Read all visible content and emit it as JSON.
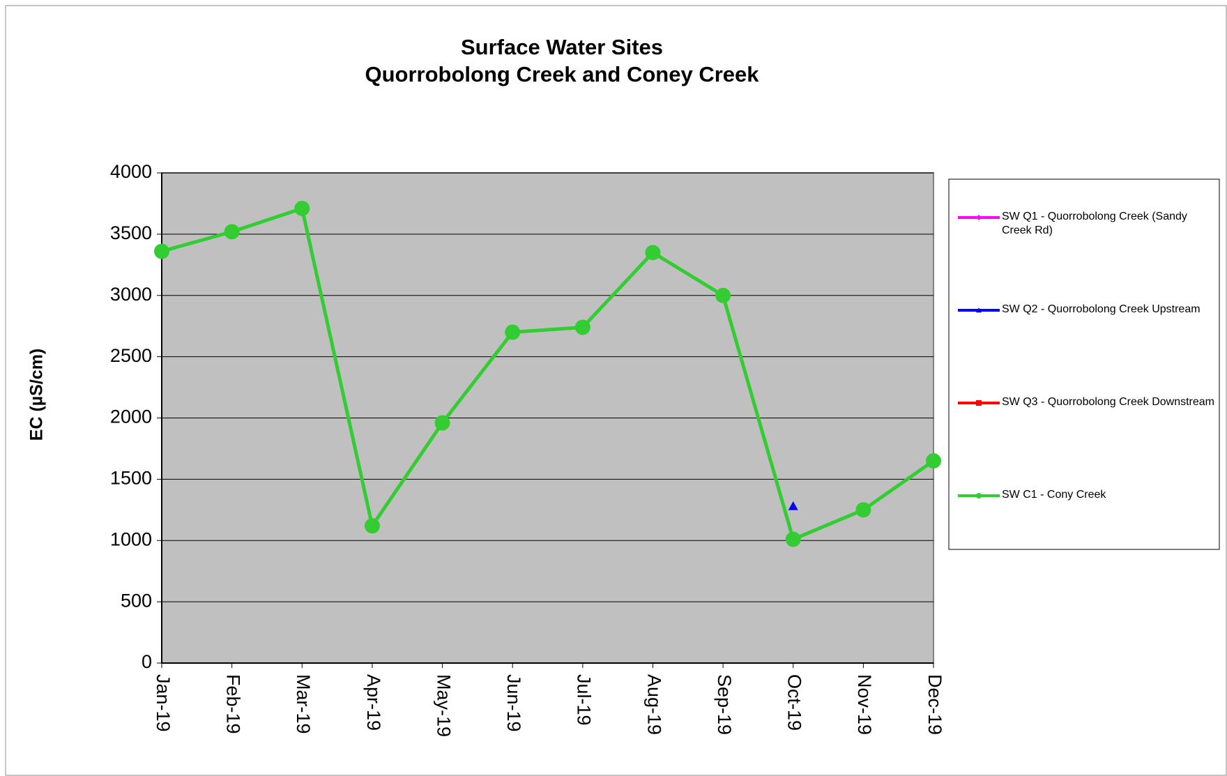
{
  "chart_data": {
    "type": "line",
    "title": "Surface Water Sites",
    "subtitle": "Quorrobolong Creek and Coney Creek",
    "y_label": "EC (µS/cm)",
    "categories": [
      "Jan-19",
      "Feb-19",
      "Mar-19",
      "Apr-19",
      "May-19",
      "Jun-19",
      "Jul-19",
      "Aug-19",
      "Sep-19",
      "Oct-19",
      "Nov-19",
      "Dec-19"
    ],
    "series": [
      {
        "name": "SW Q1 - Quorrobolong Creek (Sandy Creek Rd)",
        "color": "#ff00ff",
        "marker": "diamond",
        "values": [
          null,
          null,
          null,
          null,
          null,
          null,
          null,
          null,
          null,
          null,
          null,
          null
        ]
      },
      {
        "name": "SW Q2 - Quorrobolong Creek Upstream",
        "color": "#0000ff",
        "marker": "triangle",
        "values": [
          null,
          null,
          null,
          null,
          null,
          null,
          null,
          null,
          null,
          1280,
          null,
          null
        ]
      },
      {
        "name": "SW Q3 - Quorrobolong Creek Downstream",
        "color": "#ff0000",
        "marker": "square",
        "values": [
          null,
          null,
          null,
          null,
          null,
          null,
          null,
          null,
          null,
          null,
          null,
          null
        ]
      },
      {
        "name": "SW C1 - Cony Creek",
        "color": "#33cc33",
        "marker": "circle",
        "values": [
          3360,
          3520,
          3710,
          1120,
          1960,
          2700,
          2740,
          3350,
          3000,
          1010,
          1250,
          1650
        ]
      }
    ],
    "ylim": [
      0,
      4000
    ],
    "yticks": [
      0,
      500,
      1000,
      1500,
      2000,
      2500,
      3000,
      3500,
      4000
    ],
    "grid": true,
    "legend": "right"
  }
}
